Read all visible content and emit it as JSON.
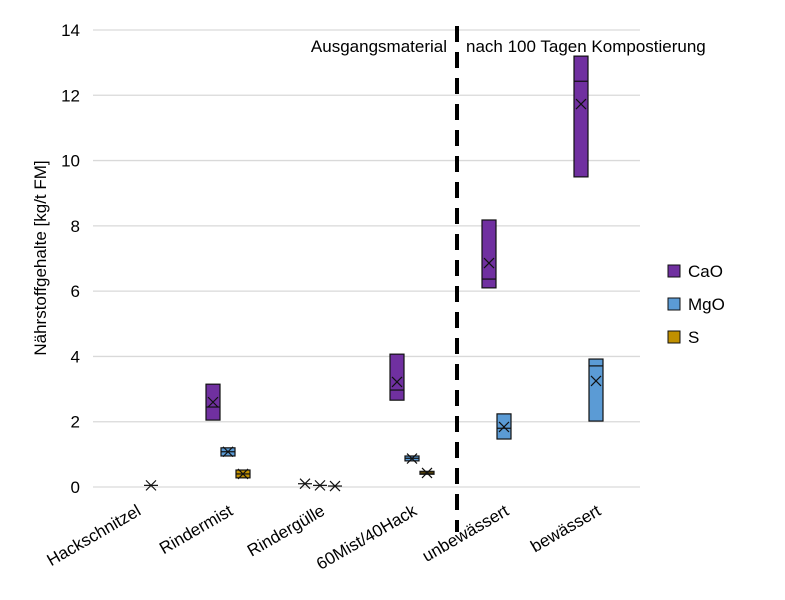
{
  "chart_data": {
    "type": "box",
    "title": "",
    "xlabel": "",
    "ylabel": "Nährstoffgehalte [kg/t FM]",
    "ylim": [
      0,
      14
    ],
    "yticks": [
      0,
      2,
      4,
      6,
      8,
      10,
      12,
      14
    ],
    "grid": true,
    "legend_position": "right",
    "categories": [
      "Hackschnitzel",
      "Rindermist",
      "Rindergülle",
      "60Mist/40Hack",
      "unbewässert",
      "bewässert"
    ],
    "annotations": {
      "left": "Ausgangsmaterial",
      "right": "nach 100 Tagen Kompostierung",
      "divider_after_category": 3
    },
    "series": [
      {
        "name": "CaO",
        "color": "#7030a0",
        "values": [
          null,
          {
            "low": 2.05,
            "high": 3.15,
            "median": 2.45,
            "mean": 2.6
          },
          {
            "low": 0.1,
            "high": 0.1,
            "median": 0.1,
            "mean": 0.1
          },
          {
            "low": 2.66,
            "high": 4.07,
            "median": 2.97,
            "mean": 3.22
          },
          {
            "low": 6.1,
            "high": 8.18,
            "median": 6.37,
            "mean": 6.86
          },
          {
            "low": 9.5,
            "high": 13.2,
            "median": 12.43,
            "mean": 11.73
          }
        ]
      },
      {
        "name": "MgO",
        "color": "#5b9bd5",
        "values": [
          null,
          {
            "low": 0.95,
            "high": 1.2,
            "median": 1.08,
            "mean": 1.08
          },
          {
            "low": 0.05,
            "high": 0.05,
            "median": 0.05,
            "mean": 0.05
          },
          {
            "low": 0.8,
            "high": 0.95,
            "median": 0.88,
            "mean": 0.87
          },
          {
            "low": 1.47,
            "high": 2.24,
            "median": 1.8,
            "mean": 1.84
          },
          {
            "low": 2.02,
            "high": 3.92,
            "median": 3.71,
            "mean": 3.25
          }
        ]
      },
      {
        "name": "S",
        "color": "#c09000",
        "values": [
          {
            "low": 0.05,
            "high": 0.05,
            "median": 0.05,
            "mean": 0.05
          },
          {
            "low": 0.28,
            "high": 0.52,
            "median": 0.4,
            "mean": 0.4
          },
          {
            "low": 0.03,
            "high": 0.03,
            "median": 0.03,
            "mean": 0.03
          },
          {
            "low": 0.39,
            "high": 0.48,
            "median": 0.43,
            "mean": 0.43
          },
          null,
          null
        ]
      }
    ]
  }
}
